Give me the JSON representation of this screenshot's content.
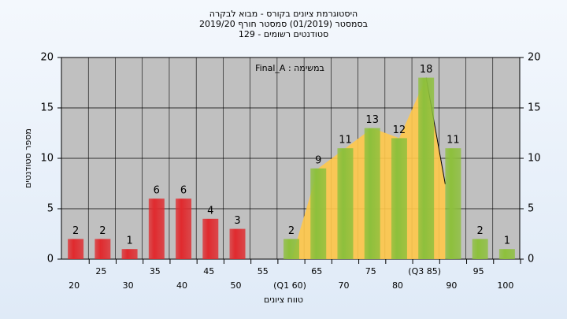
{
  "chart_data": {
    "type": "bar",
    "title": "היסטוגרמת ציונים בקורס - מבוא לבקרה",
    "subtitle": "בסמסטר  (01/2019)  סמסטר חורף 2019/20",
    "subtitle2": "129 - סטודנטים רשומים",
    "annotation": "Final_A : במשימה",
    "y_label": "מספר סטודנטים",
    "x_label": "טווח ציונים",
    "categories": [
      "20",
      "25",
      "30",
      "35",
      "40",
      "45",
      "50",
      "55",
      "(Q1 60)",
      "65",
      "70",
      "75",
      "80",
      "(Q3 85)",
      "90",
      "95",
      "100"
    ],
    "values": [
      2,
      2,
      1,
      6,
      6,
      4,
      3,
      0,
      2,
      9,
      11,
      13,
      12,
      18,
      11,
      2,
      1
    ],
    "colors": [
      "#e02a2e",
      "#e02a2e",
      "#e02a2e",
      "#e02a2e",
      "#e02a2e",
      "#e02a2e",
      "#e02a2e",
      "#e02a2e",
      "#8dc03c",
      "#8dc03c",
      "#8dc03c",
      "#8dc03c",
      "#8dc03c",
      "#8dc03c",
      "#8dc03c",
      "#8dc03c",
      "#8dc03c"
    ],
    "area_color": "#ffc84a",
    "ylim": [
      0,
      20
    ],
    "yticks": [
      0,
      5,
      10,
      15,
      20
    ],
    "grid": true
  }
}
